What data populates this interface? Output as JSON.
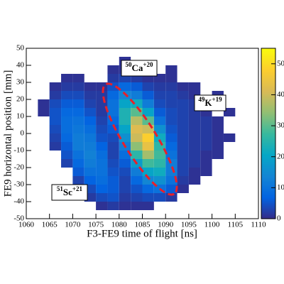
{
  "chart_data": {
    "type": "heatmap",
    "xlabel": "F3-FE9 time of flight [ns]",
    "ylabel": "FE9 horizontal position [mm]",
    "xlim": [
      1060,
      1110
    ],
    "ylim": [
      -50,
      50
    ],
    "zlim": [
      0,
      55
    ],
    "xticks": [
      1060,
      1065,
      1070,
      1075,
      1080,
      1085,
      1090,
      1095,
      1100,
      1105,
      1110
    ],
    "yticks": [
      -50,
      -40,
      -30,
      -20,
      -10,
      0,
      10,
      20,
      30,
      40,
      50
    ],
    "zticks": [
      0,
      10,
      20,
      30,
      40,
      50
    ],
    "xbins": [
      1060,
      1062.5,
      1065,
      1067.5,
      1070,
      1072.5,
      1075,
      1077.5,
      1080,
      1082.5,
      1085,
      1087.5,
      1090,
      1092.5,
      1095,
      1097.5,
      1100,
      1102.5,
      1105,
      1107.5,
      1110
    ],
    "ybins": [
      50,
      45,
      40,
      35,
      30,
      25,
      20,
      15,
      10,
      5,
      0,
      -5,
      -10,
      -15,
      -20,
      -25,
      -30,
      -35,
      -40,
      -45,
      -50
    ],
    "colorscale": [
      "#352a87",
      "#0363e1",
      "#1485d4",
      "#06a7c6",
      "#38b99e",
      "#92bf73",
      "#d9ba56",
      "#fcce2e",
      "#f9fb0e"
    ],
    "values": [
      [
        0,
        0,
        0,
        0,
        0,
        0,
        0,
        0,
        0,
        0,
        0,
        0,
        0,
        0,
        0,
        0,
        0,
        0,
        0,
        0
      ],
      [
        0,
        0,
        0,
        0,
        0,
        0,
        0,
        0,
        1,
        0,
        0,
        0,
        0,
        0,
        0,
        0,
        0,
        0,
        0,
        0
      ],
      [
        0,
        0,
        0,
        0,
        0,
        0,
        0,
        1,
        1,
        0,
        0,
        0,
        1,
        0,
        0,
        0,
        0,
        0,
        0,
        0
      ],
      [
        0,
        0,
        0,
        1,
        1,
        0,
        0,
        2,
        3,
        2,
        1,
        1,
        1,
        0,
        0,
        0,
        0,
        0,
        0,
        0
      ],
      [
        0,
        0,
        1,
        2,
        2,
        1,
        1,
        5,
        8,
        6,
        3,
        2,
        2,
        1,
        1,
        0,
        0,
        0,
        0,
        0
      ],
      [
        0,
        0,
        2,
        4,
        4,
        2,
        2,
        8,
        14,
        12,
        6,
        3,
        3,
        2,
        1,
        0,
        1,
        0,
        0,
        0
      ],
      [
        0,
        1,
        4,
        6,
        6,
        3,
        2,
        10,
        20,
        22,
        12,
        4,
        3,
        3,
        2,
        1,
        1,
        0,
        0,
        0
      ],
      [
        0,
        1,
        5,
        8,
        8,
        5,
        2,
        10,
        24,
        30,
        20,
        6,
        4,
        3,
        2,
        1,
        0,
        1,
        0,
        0
      ],
      [
        0,
        0,
        5,
        9,
        10,
        7,
        3,
        8,
        24,
        38,
        30,
        10,
        4,
        3,
        2,
        2,
        1,
        0,
        0,
        0
      ],
      [
        0,
        0,
        4,
        9,
        11,
        9,
        4,
        6,
        20,
        42,
        40,
        16,
        5,
        3,
        2,
        2,
        1,
        0,
        0,
        0
      ],
      [
        0,
        0,
        3,
        8,
        12,
        11,
        5,
        4,
        16,
        40,
        48,
        22,
        6,
        3,
        2,
        2,
        1,
        1,
        0,
        0
      ],
      [
        0,
        0,
        2,
        6,
        12,
        12,
        7,
        3,
        12,
        34,
        44,
        26,
        8,
        3,
        2,
        2,
        1,
        0,
        0,
        0
      ],
      [
        0,
        0,
        0,
        5,
        10,
        13,
        9,
        3,
        9,
        26,
        36,
        28,
        10,
        3,
        2,
        1,
        1,
        0,
        0,
        0
      ],
      [
        0,
        0,
        0,
        3,
        8,
        12,
        10,
        4,
        6,
        18,
        28,
        26,
        12,
        3,
        2,
        1,
        0,
        0,
        0,
        0
      ],
      [
        0,
        0,
        0,
        0,
        6,
        10,
        10,
        5,
        4,
        12,
        20,
        22,
        12,
        3,
        1,
        1,
        0,
        0,
        0,
        0
      ],
      [
        0,
        0,
        0,
        0,
        3,
        7,
        9,
        6,
        3,
        8,
        14,
        16,
        10,
        2,
        1,
        0,
        0,
        0,
        0,
        0
      ],
      [
        0,
        0,
        0,
        0,
        0,
        4,
        7,
        6,
        3,
        5,
        8,
        10,
        6,
        1,
        0,
        0,
        0,
        0,
        0,
        0
      ],
      [
        0,
        0,
        0,
        0,
        0,
        2,
        4,
        5,
        2,
        3,
        4,
        4,
        2,
        0,
        0,
        0,
        0,
        0,
        0,
        0
      ],
      [
        0,
        0,
        0,
        0,
        0,
        0,
        1,
        2,
        1,
        1,
        1,
        0,
        0,
        0,
        0,
        0,
        0,
        0,
        0,
        0
      ],
      [
        0,
        0,
        0,
        0,
        0,
        0,
        0,
        0,
        0,
        0,
        0,
        0,
        0,
        0,
        0,
        0,
        0,
        0,
        0,
        0
      ]
    ],
    "annotations": [
      {
        "mass": "50",
        "element": "Ca",
        "charge": "+20"
      },
      {
        "mass": "49",
        "element": "K",
        "charge": "+19"
      },
      {
        "mass": "51",
        "element": "Sc",
        "charge": "+21"
      }
    ]
  }
}
